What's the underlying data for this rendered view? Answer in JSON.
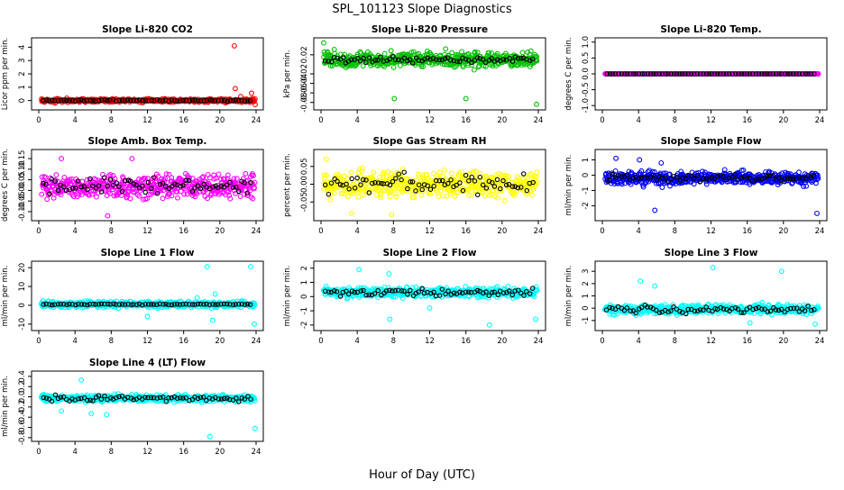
{
  "title": "SPL_101123  Slope Diagnostics",
  "xlabel": "Hour of Day (UTC)",
  "colors": {
    "red": "#ff0000",
    "green": "#00c000",
    "magenta": "#ff00ff",
    "yellow": "#ffff00",
    "blue": "#0000ff",
    "cyan": "#00ffff",
    "mean": "#000000"
  },
  "chart_data": [
    {
      "type": "scatter",
      "title": "Slope Li-820 CO2",
      "ylabel": "Licor ppm per min.",
      "color": "red",
      "x_range": [
        0,
        24
      ],
      "xticks": [
        0,
        4,
        8,
        12,
        16,
        20,
        24
      ],
      "ylim": [
        -0.5,
        4.5
      ],
      "yticks": [
        0,
        1,
        2,
        3,
        4
      ],
      "ytick_labels": [
        "0",
        "1",
        "2",
        "3",
        "4"
      ],
      "center": 0,
      "spread": 0.12,
      "mean_spread": 0.05,
      "outliers": [
        [
          21.6,
          4.1
        ],
        [
          21.7,
          0.9
        ],
        [
          22.3,
          0.3
        ],
        [
          23.5,
          0.55
        ],
        [
          23.9,
          -0.3
        ]
      ]
    },
    {
      "type": "scatter",
      "title": "Slope Li-820 Pressure",
      "ylabel": "kPa per min.",
      "color": "green",
      "x_range": [
        0,
        24
      ],
      "xticks": [
        0,
        4,
        8,
        12,
        16,
        20,
        24
      ],
      "ylim": [
        -0.09,
        0.05
      ],
      "yticks": [
        -0.08,
        -0.06,
        -0.04,
        -0.02,
        0.02
      ],
      "ytick_labels": [
        "-0.08",
        "-0.06",
        "-0.04",
        "-0.02",
        "0.02"
      ],
      "center": 0.01,
      "spread": 0.014,
      "mean_spread": 0.006,
      "outliers": [
        [
          8.1,
          -0.072
        ],
        [
          16.0,
          -0.072
        ],
        [
          23.8,
          -0.084
        ],
        [
          0.3,
          0.045
        ]
      ]
    },
    {
      "type": "scatter",
      "title": "Slope Li-820 Temp.",
      "ylabel": "degrees C per min.",
      "color": "magenta",
      "x_range": [
        0,
        24
      ],
      "xticks": [
        0,
        4,
        8,
        12,
        16,
        20,
        24
      ],
      "ylim": [
        -1.05,
        1.05
      ],
      "yticks": [
        -1,
        -0.5,
        0,
        0.5,
        1
      ],
      "ytick_labels": [
        "-1.0",
        "-0.5",
        "0.0",
        "0.5",
        "1.0"
      ],
      "center": 0,
      "spread": 0.003,
      "mean_spread": 0.001,
      "outliers": []
    },
    {
      "type": "scatter",
      "title": "Slope Amb. Box Temp.",
      "ylabel": "degrees C per min.",
      "color": "magenta",
      "x_range": [
        0,
        24
      ],
      "xticks": [
        0,
        4,
        8,
        12,
        16,
        20,
        24
      ],
      "ylim": [
        -0.13,
        0.18
      ],
      "yticks": [
        -0.1,
        -0.05,
        0,
        0.05,
        0.1,
        0.15
      ],
      "ytick_labels": [
        "-0.10",
        "-0.05",
        "0.00",
        "0.05",
        "0.10",
        "0.15"
      ],
      "center": 0.02,
      "spread": 0.05,
      "mean_spread": 0.035,
      "outliers": [
        [
          7.6,
          -0.12
        ],
        [
          2.5,
          0.15
        ],
        [
          10.3,
          0.15
        ]
      ]
    },
    {
      "type": "scatter",
      "title": "Slope Gas Stream RH",
      "ylabel": "percent per min.",
      "color": "yellow",
      "x_range": [
        0,
        24
      ],
      "xticks": [
        0,
        4,
        8,
        12,
        16,
        20,
        24
      ],
      "ylim": [
        -0.095,
        0.09
      ],
      "yticks": [
        -0.05,
        0,
        0.05
      ],
      "ytick_labels": [
        "-0.05",
        "0.00",
        "0.05"
      ],
      "center": 0,
      "spread": 0.035,
      "mean_spread": 0.025,
      "outliers": [
        [
          7.8,
          -0.085
        ],
        [
          3.4,
          -0.082
        ],
        [
          0.6,
          0.07
        ]
      ]
    },
    {
      "type": "scatter",
      "title": "Slope Sample Flow",
      "ylabel": "ml/min per min.",
      "color": "blue",
      "x_range": [
        0,
        24
      ],
      "xticks": [
        0,
        4,
        8,
        12,
        16,
        20,
        24
      ],
      "ylim": [
        -2.8,
        1.5
      ],
      "yticks": [
        -2,
        -1,
        0,
        1
      ],
      "ytick_labels": [
        "-2",
        "-1",
        "0",
        "1"
      ],
      "center": -0.2,
      "spread": 0.4,
      "mean_spread": 0.2,
      "outliers": [
        [
          23.7,
          -2.5
        ],
        [
          5.8,
          -2.3
        ],
        [
          6.5,
          0.8
        ],
        [
          1.5,
          1.1
        ],
        [
          4.1,
          1.0
        ]
      ]
    },
    {
      "type": "scatter",
      "title": "Slope Line 1 Flow",
      "ylabel": "ml/min per min.",
      "color": "cyan",
      "x_range": [
        0,
        24
      ],
      "xticks": [
        0,
        4,
        8,
        12,
        16,
        20,
        24
      ],
      "ylim": [
        -12,
        22
      ],
      "yticks": [
        -10,
        0,
        10,
        20
      ],
      "ytick_labels": [
        "-10",
        "0",
        "10",
        "20"
      ],
      "center": 0.5,
      "spread": 1.5,
      "mean_spread": 0.3,
      "outliers": [
        [
          18.6,
          20.5
        ],
        [
          23.4,
          20.5
        ],
        [
          19.2,
          -8
        ],
        [
          23.8,
          -10
        ],
        [
          19.5,
          6
        ],
        [
          12.0,
          -6
        ],
        [
          17.5,
          4
        ]
      ]
    },
    {
      "type": "scatter",
      "title": "Slope Line 2 Flow",
      "ylabel": "ml/min per min.",
      "color": "cyan",
      "x_range": [
        0,
        24
      ],
      "xticks": [
        0,
        4,
        8,
        12,
        16,
        20,
        24
      ],
      "ylim": [
        -2.2,
        2.3
      ],
      "yticks": [
        -2,
        -1,
        0,
        1,
        2
      ],
      "ytick_labels": [
        "-2",
        "-1",
        "0",
        "1",
        "2"
      ],
      "center": 0.3,
      "spread": 0.3,
      "mean_spread": 0.25,
      "outliers": [
        [
          4.2,
          1.9
        ],
        [
          7.5,
          1.6
        ],
        [
          18.6,
          -2.0
        ],
        [
          23.7,
          -1.6
        ],
        [
          7.6,
          -1.6
        ],
        [
          12.0,
          -0.8
        ]
      ]
    },
    {
      "type": "scatter",
      "title": "Slope Line 3 Flow",
      "ylabel": "ml/min per min.",
      "color": "cyan",
      "x_range": [
        0,
        24
      ],
      "xticks": [
        0,
        4,
        8,
        12,
        16,
        20,
        24
      ],
      "ylim": [
        -1.6,
        3.6
      ],
      "yticks": [
        -1,
        0,
        1,
        2,
        3
      ],
      "ytick_labels": [
        "-1",
        "0",
        "1",
        "2",
        "3"
      ],
      "center": -0.1,
      "spread": 0.35,
      "mean_spread": 0.3,
      "outliers": [
        [
          12.2,
          3.3
        ],
        [
          19.8,
          3.0
        ],
        [
          4.2,
          2.2
        ],
        [
          23.5,
          -1.3
        ],
        [
          5.8,
          1.8
        ],
        [
          16.3,
          -1.2
        ]
      ]
    },
    {
      "type": "scatter",
      "title": "Slope Line 4 (LT) Flow",
      "ylabel": "ml/min per min.",
      "color": "cyan",
      "x_range": [
        0,
        24
      ],
      "xticks": [
        0,
        4,
        8,
        12,
        16,
        20,
        24
      ],
      "ylim": [
        -0.82,
        0.45
      ],
      "yticks": [
        -0.8,
        -0.6,
        -0.4,
        -0.2,
        0,
        0.2,
        0.4
      ],
      "ytick_labels": [
        "-0.8",
        "-0.6",
        "-0.4",
        "-0.2",
        "0.0",
        "0.2",
        "0.4"
      ],
      "center": -0.03,
      "spread": 0.06,
      "mean_spread": 0.05,
      "outliers": [
        [
          18.9,
          -0.78
        ],
        [
          23.9,
          -0.62
        ],
        [
          4.7,
          0.33
        ],
        [
          5.8,
          -0.33
        ],
        [
          7.5,
          -0.35
        ],
        [
          2.5,
          -0.28
        ]
      ]
    }
  ]
}
